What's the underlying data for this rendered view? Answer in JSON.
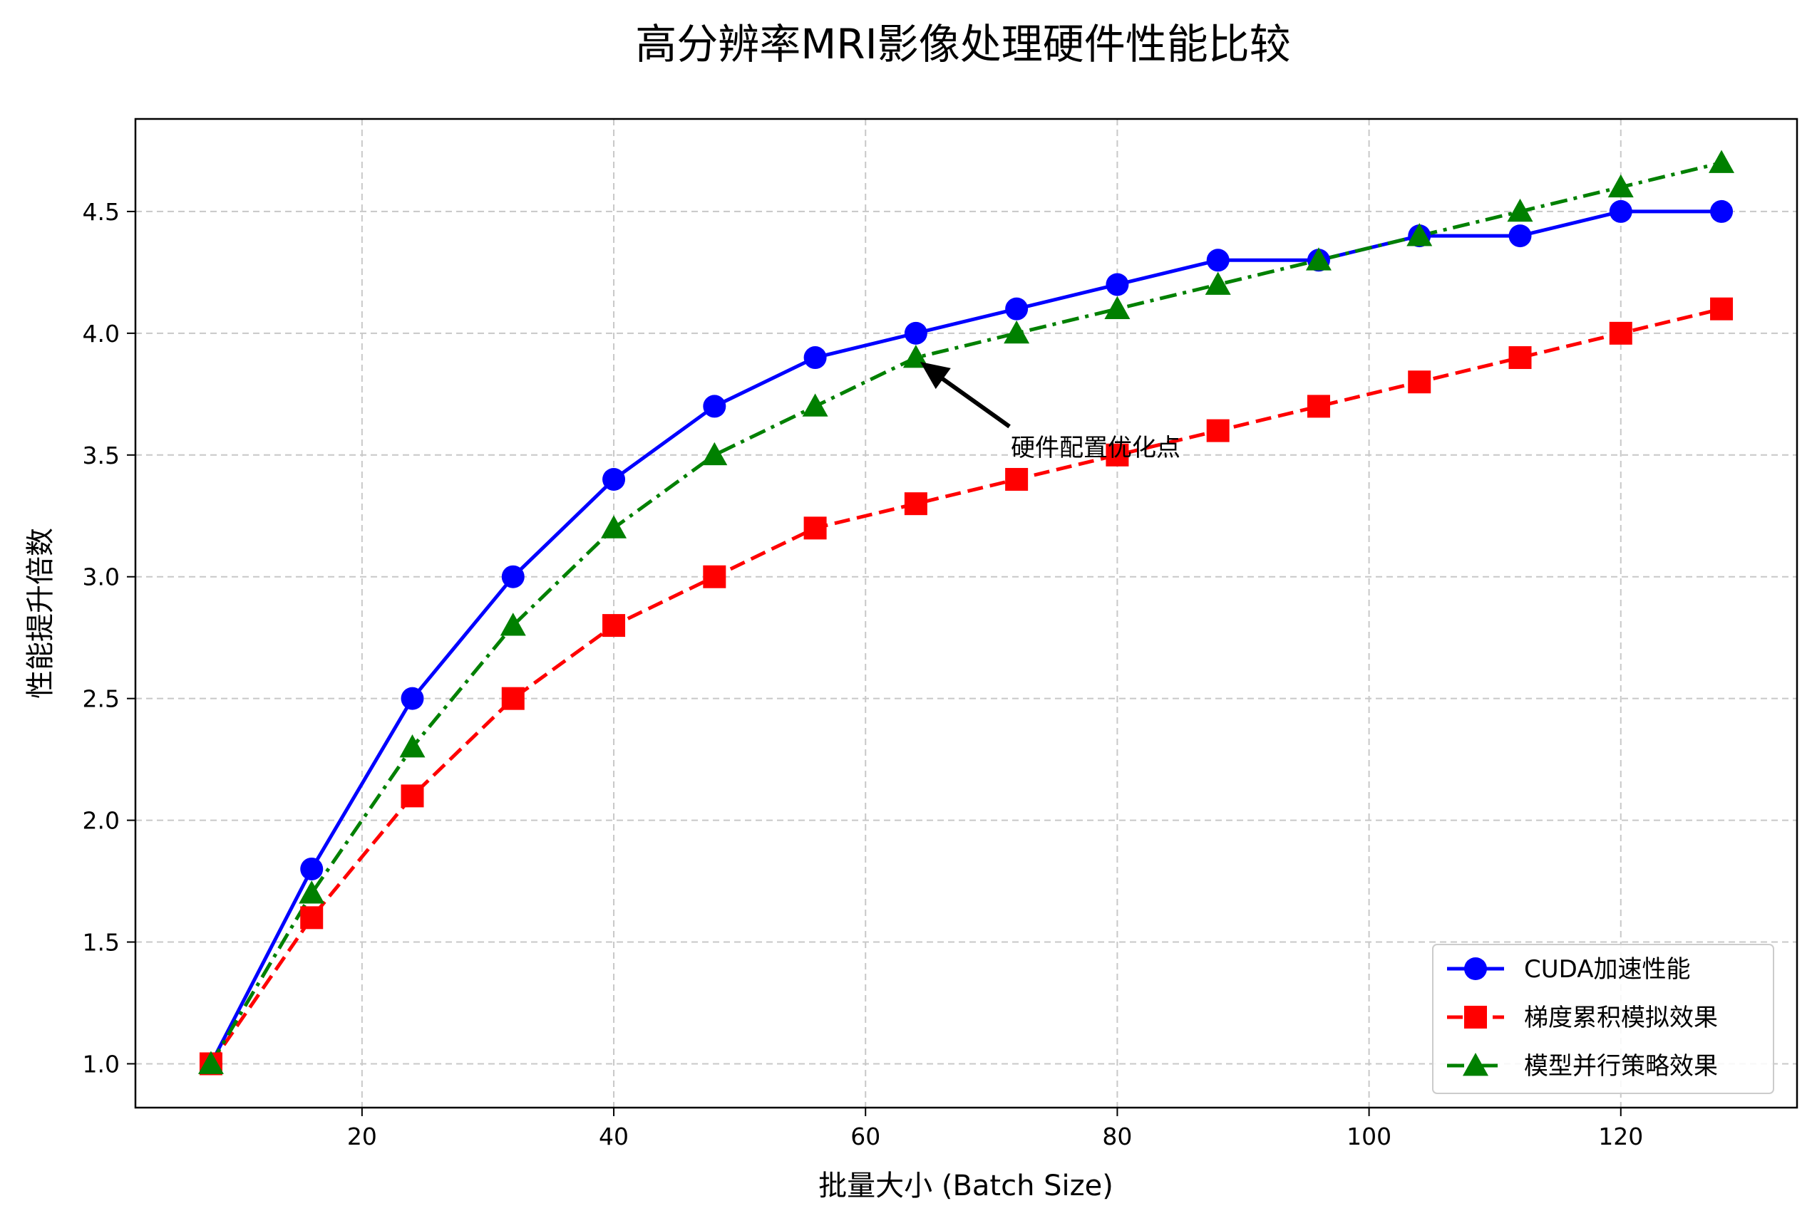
{
  "chart_data": {
    "type": "line",
    "title": "高分辨率MRI影像处理硬件性能比较",
    "xlabel": "批量大小 (Batch Size)",
    "ylabel": "性能提升倍数",
    "x": [
      8,
      16,
      24,
      32,
      40,
      48,
      56,
      64,
      72,
      80,
      88,
      96,
      104,
      112,
      120,
      128
    ],
    "xlim": [
      2,
      134
    ],
    "ylim": [
      0.82,
      4.88
    ],
    "xticks": [
      20,
      40,
      60,
      80,
      100,
      120
    ],
    "yticks": [
      1.0,
      1.5,
      2.0,
      2.5,
      3.0,
      3.5,
      4.0,
      4.5
    ],
    "grid": true,
    "legend_position": "lower-right",
    "series": [
      {
        "name": "CUDA加速性能",
        "color": "#0000ff",
        "marker": "circle",
        "linestyle": "solid",
        "values": [
          1.0,
          1.8,
          2.5,
          3.0,
          3.4,
          3.7,
          3.9,
          4.0,
          4.1,
          4.2,
          4.3,
          4.3,
          4.4,
          4.4,
          4.5,
          4.5
        ]
      },
      {
        "name": "梯度累积模拟效果",
        "color": "#ff0000",
        "marker": "square",
        "linestyle": "dashed",
        "values": [
          1.0,
          1.6,
          2.1,
          2.5,
          2.8,
          3.0,
          3.2,
          3.3,
          3.4,
          3.5,
          3.6,
          3.7,
          3.8,
          3.9,
          4.0,
          4.1
        ]
      },
      {
        "name": "模型并行策略效果",
        "color": "#008000",
        "marker": "triangle",
        "linestyle": "dashdot",
        "values": [
          1.0,
          1.7,
          2.3,
          2.8,
          3.2,
          3.5,
          3.7,
          3.9,
          4.0,
          4.1,
          4.2,
          4.3,
          4.4,
          4.5,
          4.6,
          4.7
        ]
      }
    ],
    "annotation": {
      "text": "硬件配置优化点",
      "point": [
        64,
        3.9
      ],
      "text_anchor": [
        72,
        3.5
      ]
    }
  }
}
